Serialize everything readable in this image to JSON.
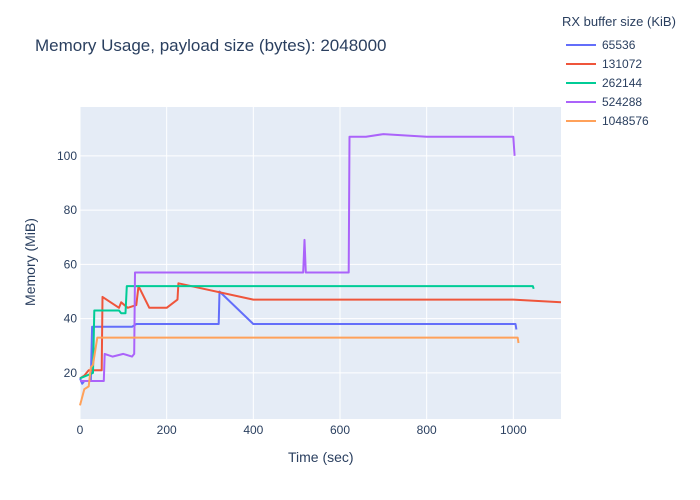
{
  "title": "Memory Usage, payload size (bytes): 2048000",
  "legend": {
    "title": "RX buffer size (KiB)",
    "items": [
      {
        "label": "65536",
        "color": "#636efa"
      },
      {
        "label": "131072",
        "color": "#ef553b"
      },
      {
        "label": "262144",
        "color": "#00cc96"
      },
      {
        "label": "524288",
        "color": "#ab63fa"
      },
      {
        "label": "1048576",
        "color": "#ffa15a"
      }
    ]
  },
  "chart_data": {
    "type": "line",
    "title": "Memory Usage, payload size (bytes): 2048000",
    "xlabel": "Time (sec)",
    "ylabel": "Memory (MiB)",
    "xlim": [
      0,
      1110
    ],
    "ylim": [
      3,
      118
    ],
    "xticks": [
      0,
      200,
      400,
      600,
      800,
      1000
    ],
    "yticks": [
      20,
      40,
      60,
      80,
      100
    ],
    "grid": true,
    "legend_position": "top-right",
    "series": [
      {
        "name": "65536",
        "color": "#636efa",
        "x": [
          0,
          5,
          10,
          25,
          28,
          120,
          130,
          320,
          322,
          400,
          600,
          800,
          1005,
          1007
        ],
        "y": [
          18,
          16,
          17,
          17,
          37,
          37,
          38,
          38,
          50,
          38,
          38,
          38,
          38,
          36
        ]
      },
      {
        "name": "131072",
        "color": "#ef553b",
        "x": [
          0,
          10,
          20,
          50,
          52,
          90,
          95,
          110,
          130,
          135,
          160,
          200,
          225,
          227,
          400,
          600,
          800,
          1000,
          1110
        ],
        "y": [
          18,
          19,
          21,
          21,
          48,
          44,
          46,
          44,
          45,
          52,
          44,
          44,
          47,
          53,
          47,
          47,
          47,
          47,
          46
        ]
      },
      {
        "name": "262144",
        "color": "#00cc96",
        "x": [
          0,
          30,
          33,
          90,
          95,
          105,
          108,
          400,
          600,
          750,
          1000,
          1045,
          1047
        ],
        "y": [
          18,
          20,
          43,
          43,
          42,
          42,
          52,
          52,
          52,
          52,
          52,
          52,
          51
        ]
      },
      {
        "name": "524288",
        "color": "#ab63fa",
        "x": [
          0,
          20,
          55,
          57,
          75,
          100,
          120,
          125,
          127,
          300,
          400,
          515,
          518,
          521,
          600,
          620,
          622,
          660,
          700,
          800,
          900,
          1000,
          1003
        ],
        "y": [
          17,
          17,
          17,
          27,
          26,
          27,
          26,
          27,
          57,
          57,
          57,
          57,
          69,
          57,
          57,
          57,
          107,
          107,
          108,
          107,
          107,
          107,
          100
        ]
      },
      {
        "name": "1048576",
        "color": "#ffa15a",
        "x": [
          0,
          10,
          20,
          25,
          30,
          40,
          50,
          60,
          80,
          100,
          300,
          600,
          900,
          1010,
          1012
        ],
        "y": [
          8,
          14,
          15,
          22,
          23,
          33,
          33,
          33,
          33,
          33,
          33,
          33,
          33,
          33,
          31
        ]
      }
    ]
  }
}
